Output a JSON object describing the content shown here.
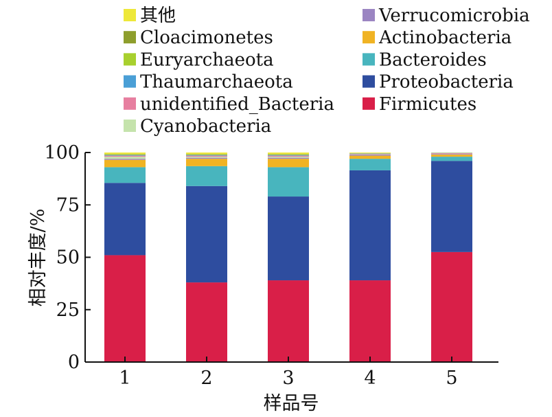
{
  "chart_data": {
    "type": "bar",
    "stacked": true,
    "title": "",
    "xlabel": "样品号",
    "ylabel": "相对丰度/%",
    "categories": [
      "1",
      "2",
      "3",
      "4",
      "5"
    ],
    "ylim": [
      0,
      100
    ],
    "yticks": [
      0,
      25,
      50,
      75,
      100
    ],
    "grid": false,
    "legend_position": "top",
    "series": [
      {
        "name": "Firmicutes",
        "color": "#d91f48",
        "values": [
          51,
          38,
          39,
          39,
          52.5
        ]
      },
      {
        "name": "Proteobacteria",
        "color": "#2e4d9f",
        "values": [
          34.5,
          46,
          40,
          52.5,
          43.5
        ]
      },
      {
        "name": "Bacteroides",
        "color": "#48b5be",
        "values": [
          7.5,
          9.5,
          14,
          5.5,
          2
        ]
      },
      {
        "name": "Actinobacteria",
        "color": "#f0b323",
        "values": [
          3.5,
          3.5,
          4,
          1.5,
          1
        ]
      },
      {
        "name": "Verrucomicrobia",
        "color": "#9b85c2",
        "values": [
          0.5,
          0.5,
          0.5,
          0.5,
          0.3
        ]
      },
      {
        "name": "Cyanobacteria",
        "color": "#c5e3ac",
        "values": [
          1,
          0.5,
          0.5,
          0.2,
          0.1
        ]
      },
      {
        "name": "unidentified_Bacteria",
        "color": "#e77fa0",
        "values": [
          0.5,
          0.5,
          0.5,
          0.2,
          0.3
        ]
      },
      {
        "name": "Thaumarchaeota",
        "color": "#4a9fd6",
        "values": [
          0.3,
          0.3,
          0.3,
          0.1,
          0.1
        ]
      },
      {
        "name": "Euryarchaeota",
        "color": "#a8d02e",
        "values": [
          0.3,
          0.3,
          0.3,
          0.1,
          0.1
        ]
      },
      {
        "name": "Cloacimonetes",
        "color": "#8e9e2c",
        "values": [
          0.2,
          0.2,
          0.2,
          0.1,
          0.05
        ]
      },
      {
        "name": "其他",
        "color": "#eee83a",
        "values": [
          0.7,
          0.7,
          0.7,
          0.3,
          0.05
        ]
      }
    ],
    "legend_order": [
      "其他",
      "Verrucomicrobia",
      "Cloacimonetes",
      "Actinobacteria",
      "Euryarchaeota",
      "Bacteroides",
      "Thaumarchaeota",
      "Proteobacteria",
      "unidentified_Bacteria",
      "Firmicutes",
      "Cyanobacteria"
    ]
  }
}
